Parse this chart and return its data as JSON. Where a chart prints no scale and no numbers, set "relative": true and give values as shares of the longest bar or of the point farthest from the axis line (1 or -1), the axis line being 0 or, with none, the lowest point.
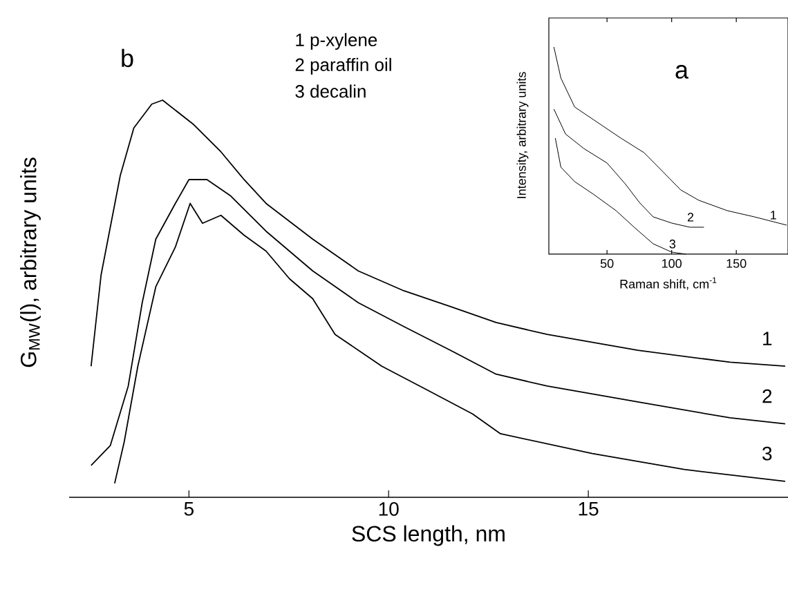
{
  "chart_data": [
    {
      "type": "line",
      "relative": true,
      "xlabel": "SCS length, nm",
      "ylabel": "G$_{MW}$(l), arbitrary units",
      "xlim": [
        2,
        20
      ],
      "xticks": [
        5,
        10,
        15
      ],
      "annotations": [
        "b",
        "1 p-xylene",
        "2 paraffin oil",
        "3 decalin"
      ],
      "series": [
        {
          "name": "1",
          "color": "#000000",
          "x": [
            2.55,
            2.8,
            3.28,
            3.62,
            4.07,
            4.34,
            5.1,
            5.8,
            6.38,
            6.93,
            8.1,
            9.24,
            10.38,
            11.55,
            12.69,
            13.97,
            16.24,
            18.55,
            19.93
          ],
          "values": [
            0.33,
            0.56,
            0.81,
            0.93,
            0.99,
            1.0,
            0.94,
            0.87,
            0.8,
            0.74,
            0.65,
            0.57,
            0.52,
            0.48,
            0.44,
            0.41,
            0.37,
            0.34,
            0.33
          ]
        },
        {
          "name": "2",
          "color": "#000000",
          "x": [
            2.55,
            3.03,
            3.48,
            3.83,
            4.17,
            4.66,
            5.0,
            5.45,
            6.03,
            6.93,
            8.1,
            9.24,
            10.38,
            11.55,
            12.69,
            13.97,
            16.24,
            18.55,
            19.93
          ],
          "values": [
            0.08,
            0.13,
            0.28,
            0.49,
            0.65,
            0.74,
            0.8,
            0.8,
            0.76,
            0.67,
            0.57,
            0.49,
            0.43,
            0.37,
            0.31,
            0.28,
            0.24,
            0.2,
            0.185
          ]
        },
        {
          "name": "3",
          "color": "#000000",
          "x": [
            3.14,
            3.38,
            3.72,
            4.17,
            4.66,
            5.03,
            5.34,
            5.8,
            6.38,
            6.93,
            7.52,
            8.1,
            8.66,
            9.83,
            10.97,
            12.1,
            12.8,
            15.1,
            17.4,
            19.93
          ],
          "values": [
            0.035,
            0.14,
            0.33,
            0.53,
            0.63,
            0.74,
            0.69,
            0.71,
            0.66,
            0.62,
            0.55,
            0.5,
            0.41,
            0.33,
            0.27,
            0.21,
            0.16,
            0.11,
            0.07,
            0.04
          ]
        }
      ]
    },
    {
      "type": "line",
      "relative": true,
      "xlabel": "Raman shift, cm$^{-1}$",
      "ylabel": "Intensity, arbitrary units",
      "xlim": [
        5,
        190
      ],
      "xticks": [
        50,
        100,
        150
      ],
      "annotations": [
        "a"
      ],
      "series": [
        {
          "name": "1",
          "color": "#000000",
          "x": [
            8.9,
            14.3,
            25,
            39.3,
            60.7,
            78.6,
            92.9,
            107,
            121,
            143,
            164,
            189
          ],
          "values": [
            1.0,
            0.85,
            0.71,
            0.65,
            0.56,
            0.49,
            0.4,
            0.31,
            0.26,
            0.21,
            0.18,
            0.14
          ]
        },
        {
          "name": "2",
          "color": "#000000",
          "x": [
            8.9,
            17.9,
            32,
            50,
            64,
            75,
            85.7,
            100,
            114,
            125
          ],
          "values": [
            0.7,
            0.58,
            0.51,
            0.44,
            0.34,
            0.25,
            0.18,
            0.15,
            0.13,
            0.13
          ]
        },
        {
          "name": "3",
          "color": "#000000",
          "x": [
            10,
            14.3,
            25,
            39.3,
            57,
            71,
            85.7,
            100,
            111
          ],
          "values": [
            0.56,
            0.42,
            0.35,
            0.29,
            0.21,
            0.13,
            0.05,
            0.01,
            0
          ]
        }
      ]
    }
  ]
}
